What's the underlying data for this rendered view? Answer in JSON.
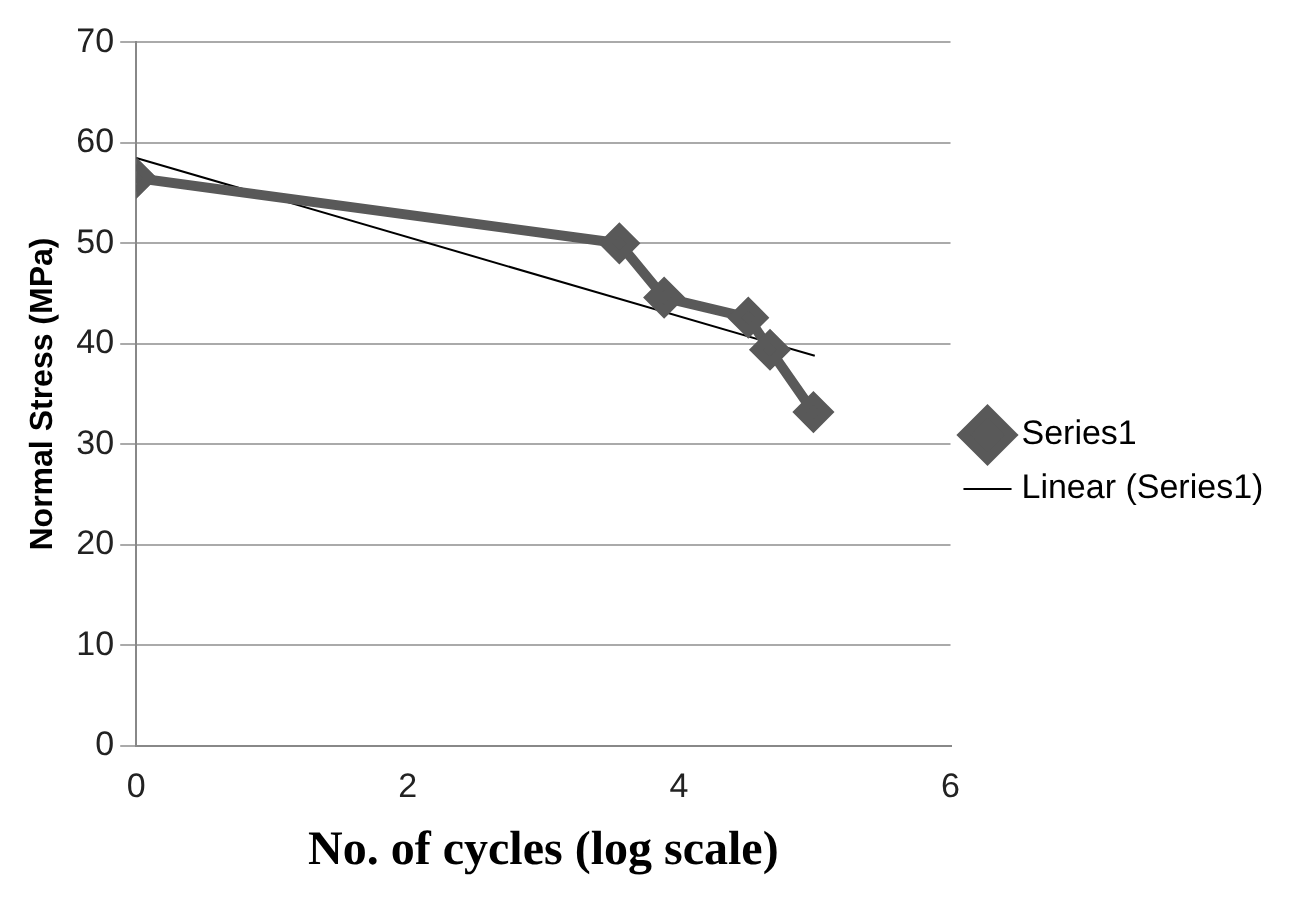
{
  "chart_data": {
    "type": "line",
    "xlabel": "No. of cycles (log scale)",
    "ylabel": "Normal Stress (MPa)",
    "xlim": [
      0,
      6
    ],
    "xticks": [
      0,
      2,
      4,
      6
    ],
    "ylim": [
      0,
      70
    ],
    "yticks": [
      0,
      10,
      20,
      30,
      40,
      50,
      60,
      70
    ],
    "grid": "y",
    "legend": "right",
    "marker": "diamond",
    "line_style": "solid",
    "series": [
      {
        "name": "Series1",
        "color": "#595959",
        "x": [
          0,
          3.56,
          3.89,
          4.51,
          4.67,
          4.99
        ],
        "values": [
          56.5,
          50.0,
          44.6,
          42.6,
          39.4,
          33.2
        ]
      },
      {
        "name": "Linear (Series1)",
        "color": "#000000",
        "marker": "none",
        "x": [
          0,
          5.0
        ],
        "values": [
          58.5,
          38.8
        ]
      }
    ]
  }
}
